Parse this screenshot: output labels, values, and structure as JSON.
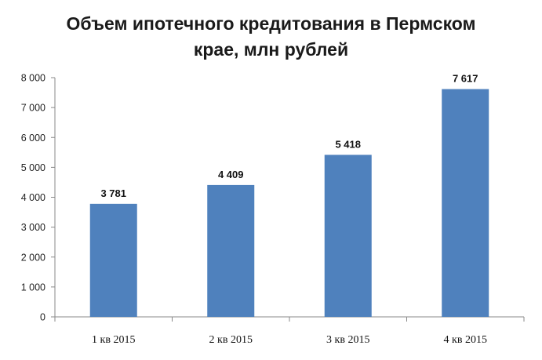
{
  "chart_data": {
    "type": "bar",
    "title_line1": "Объем ипотечного кредитования в Пермском",
    "title_line2": "крае, млн рублей",
    "categories": [
      "1 кв 2015",
      "2 кв 2015",
      "3 кв 2015",
      "4 кв 2015"
    ],
    "values": [
      3781,
      4409,
      5418,
      7617
    ],
    "value_labels": [
      "3 781",
      "4 409",
      "5 418",
      "7 617"
    ],
    "ylim": [
      0,
      8000
    ],
    "yticks": [
      0,
      1000,
      2000,
      3000,
      4000,
      5000,
      6000,
      7000,
      8000
    ],
    "ytick_labels": [
      "0",
      "1 000",
      "2 000",
      "3 000",
      "4 000",
      "5 000",
      "6 000",
      "7 000",
      "8 000"
    ],
    "bar_color": "#4f81bd",
    "grid": false,
    "legend": "none"
  }
}
